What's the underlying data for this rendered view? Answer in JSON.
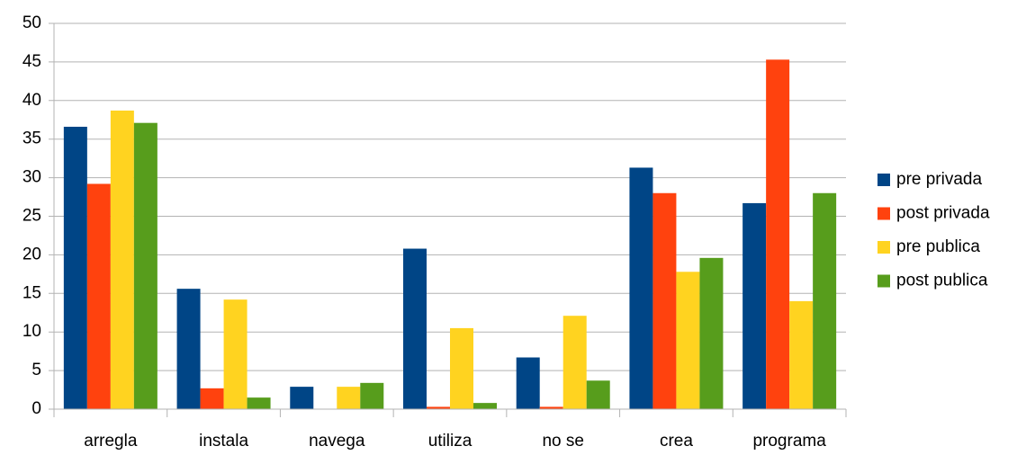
{
  "chart_data": {
    "type": "bar",
    "categories": [
      "arregla",
      "instala",
      "navega",
      "utiliza",
      "no se",
      "crea",
      "programa"
    ],
    "series": [
      {
        "name": "pre privada",
        "color": "#004586",
        "values": [
          36.6,
          15.6,
          2.9,
          20.8,
          6.7,
          31.3,
          26.7
        ]
      },
      {
        "name": "post privada",
        "color": "#ff420e",
        "values": [
          29.2,
          2.7,
          0,
          0.3,
          0.3,
          28.0,
          45.3
        ]
      },
      {
        "name": "pre publica",
        "color": "#ffd320",
        "values": [
          38.7,
          14.2,
          2.9,
          10.5,
          12.1,
          17.8,
          14.0
        ]
      },
      {
        "name": "post publica",
        "color": "#579d1c",
        "values": [
          37.1,
          1.5,
          3.4,
          0.8,
          3.7,
          19.6,
          28.0
        ]
      }
    ],
    "ylim": [
      0,
      50
    ],
    "yticks": [
      0,
      5,
      10,
      15,
      20,
      25,
      30,
      35,
      40,
      45,
      50
    ],
    "grid": true,
    "legend": "right"
  }
}
